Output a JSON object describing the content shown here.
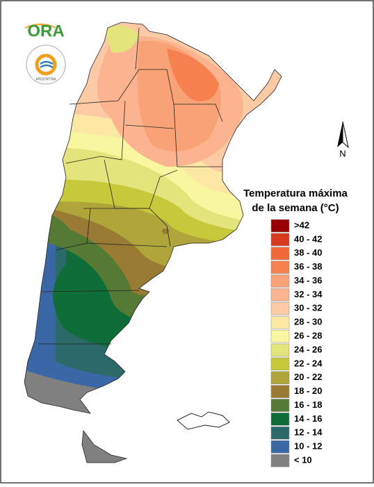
{
  "logo": {
    "name": "ORA",
    "emblem_text": "ARGENTINA"
  },
  "north_label": "N",
  "legend": {
    "title_lines": [
      "Temperatura máxima",
      "de la semana (°C)"
    ],
    "items": [
      {
        "label": ">42",
        "color": "#9b0000"
      },
      {
        "label": "40 - 42",
        "color": "#d83a1e"
      },
      {
        "label": "38 - 40",
        "color": "#f26a3a"
      },
      {
        "label": "36 - 38",
        "color": "#f6814f"
      },
      {
        "label": "34 - 36",
        "color": "#f9a277"
      },
      {
        "label": "32 - 34",
        "color": "#fbb48f"
      },
      {
        "label": "30 - 32",
        "color": "#fdcaa6"
      },
      {
        "label": "28 - 30",
        "color": "#fde7a4"
      },
      {
        "label": "26 - 28",
        "color": "#f8f7a0"
      },
      {
        "label": "24 - 26",
        "color": "#e3e47b"
      },
      {
        "label": "22 - 24",
        "color": "#c8c93a"
      },
      {
        "label": "20 - 22",
        "color": "#b0a53a"
      },
      {
        "label": "18 - 20",
        "color": "#9a7b33"
      },
      {
        "label": "16 - 18",
        "color": "#557a34"
      },
      {
        "label": "14 - 16",
        "color": "#0f6d38"
      },
      {
        "label": "12 - 14",
        "color": "#2c6a6a"
      },
      {
        "label": "10 - 12",
        "color": "#3a68a6"
      },
      {
        "label": "< 10",
        "color": "#808080"
      }
    ]
  }
}
